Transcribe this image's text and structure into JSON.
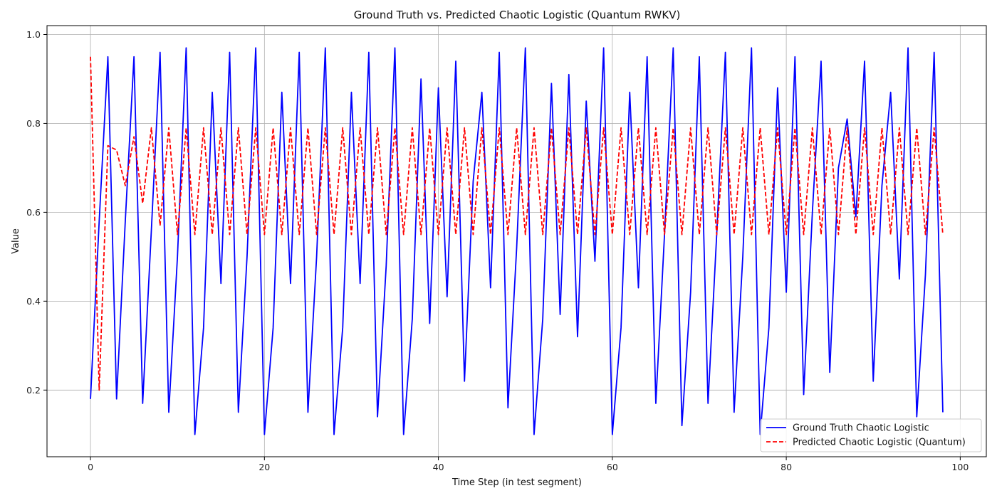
{
  "chart_data": {
    "type": "line",
    "title": "Ground Truth vs. Predicted Chaotic Logistic (Quantum RWKV)",
    "xlabel": "Time Step (in test segment)",
    "ylabel": "Value",
    "xlim": [
      -5,
      103
    ],
    "ylim": [
      0.05,
      1.02
    ],
    "xticks": [
      0,
      20,
      40,
      60,
      80,
      100
    ],
    "yticks": [
      0.2,
      0.4,
      0.6,
      0.8,
      1.0
    ],
    "grid": true,
    "legend_position": "bottom-right",
    "series": [
      {
        "name": "Ground Truth Chaotic Logistic",
        "color": "#0000ff",
        "style": "solid",
        "x": [
          0,
          1,
          2,
          3,
          4,
          5,
          6,
          7,
          8,
          9,
          10,
          11,
          12,
          13,
          14,
          15,
          16,
          17,
          18,
          19,
          20,
          21,
          22,
          23,
          24,
          25,
          26,
          27,
          28,
          29,
          30,
          31,
          32,
          33,
          34,
          35,
          36,
          37,
          38,
          39,
          40,
          41,
          42,
          43,
          44,
          45,
          46,
          47,
          48,
          49,
          50,
          51,
          52,
          53,
          54,
          55,
          56,
          57,
          58,
          59,
          60,
          61,
          62,
          63,
          64,
          65,
          66,
          67,
          68,
          69,
          70,
          71,
          72,
          73,
          74,
          75,
          76,
          77,
          78,
          79,
          80,
          81,
          82,
          83,
          84,
          85,
          86,
          87,
          88,
          89,
          90,
          91,
          92,
          93,
          94,
          95,
          96,
          97,
          98
        ],
        "values": [
          0.18,
          0.58,
          0.95,
          0.18,
          0.58,
          0.95,
          0.17,
          0.56,
          0.96,
          0.15,
          0.5,
          0.97,
          0.1,
          0.34,
          0.87,
          0.44,
          0.96,
          0.15,
          0.5,
          0.97,
          0.1,
          0.34,
          0.87,
          0.44,
          0.96,
          0.15,
          0.5,
          0.97,
          0.1,
          0.34,
          0.87,
          0.44,
          0.96,
          0.14,
          0.48,
          0.97,
          0.1,
          0.36,
          0.9,
          0.35,
          0.88,
          0.41,
          0.94,
          0.22,
          0.67,
          0.87,
          0.43,
          0.96,
          0.16,
          0.52,
          0.97,
          0.1,
          0.36,
          0.89,
          0.37,
          0.91,
          0.32,
          0.85,
          0.49,
          0.97,
          0.1,
          0.34,
          0.87,
          0.43,
          0.95,
          0.17,
          0.55,
          0.97,
          0.12,
          0.42,
          0.95,
          0.17,
          0.55,
          0.96,
          0.15,
          0.5,
          0.97,
          0.1,
          0.34,
          0.88,
          0.42,
          0.95,
          0.19,
          0.6,
          0.94,
          0.24,
          0.7,
          0.81,
          0.59,
          0.94,
          0.22,
          0.66,
          0.87,
          0.45,
          0.97,
          0.14,
          0.46,
          0.96,
          0.15
        ]
      },
      {
        "name": "Predicted Chaotic Logistic (Quantum)",
        "color": "#ff0000",
        "style": "dashed",
        "x": [
          0,
          1,
          2,
          3,
          4,
          5,
          6,
          7,
          8,
          9,
          10,
          11,
          12,
          13,
          14,
          15,
          16,
          17,
          18,
          19,
          20,
          21,
          22,
          23,
          24,
          25,
          26,
          27,
          28,
          29,
          30,
          31,
          32,
          33,
          34,
          35,
          36,
          37,
          38,
          39,
          40,
          41,
          42,
          43,
          44,
          45,
          46,
          47,
          48,
          49,
          50,
          51,
          52,
          53,
          54,
          55,
          56,
          57,
          58,
          59,
          60,
          61,
          62,
          63,
          64,
          65,
          66,
          67,
          68,
          69,
          70,
          71,
          72,
          73,
          74,
          75,
          76,
          77,
          78,
          79,
          80,
          81,
          82,
          83,
          84,
          85,
          86,
          87,
          88,
          89,
          90,
          91,
          92,
          93,
          94,
          95,
          96,
          97,
          98
        ],
        "values": [
          0.95,
          0.2,
          0.75,
          0.74,
          0.66,
          0.77,
          0.62,
          0.79,
          0.57,
          0.79,
          0.55,
          0.79,
          0.55,
          0.79,
          0.55,
          0.79,
          0.55,
          0.79,
          0.55,
          0.79,
          0.55,
          0.79,
          0.55,
          0.79,
          0.55,
          0.79,
          0.55,
          0.79,
          0.55,
          0.79,
          0.55,
          0.79,
          0.55,
          0.79,
          0.55,
          0.79,
          0.55,
          0.79,
          0.55,
          0.79,
          0.55,
          0.79,
          0.55,
          0.79,
          0.55,
          0.79,
          0.55,
          0.79,
          0.55,
          0.79,
          0.55,
          0.79,
          0.55,
          0.79,
          0.55,
          0.79,
          0.55,
          0.79,
          0.55,
          0.79,
          0.55,
          0.79,
          0.55,
          0.79,
          0.55,
          0.79,
          0.55,
          0.79,
          0.55,
          0.79,
          0.55,
          0.79,
          0.55,
          0.79,
          0.55,
          0.79,
          0.55,
          0.79,
          0.55,
          0.79,
          0.55,
          0.79,
          0.55,
          0.79,
          0.55,
          0.79,
          0.55,
          0.79,
          0.55,
          0.79,
          0.55,
          0.79,
          0.55,
          0.79,
          0.55,
          0.79,
          0.55,
          0.79,
          0.55
        ]
      }
    ]
  }
}
